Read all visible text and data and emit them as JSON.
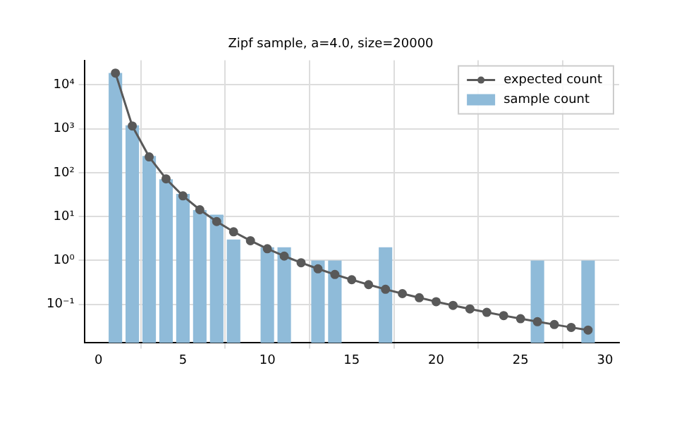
{
  "chart_data": {
    "type": "bar",
    "title": "Zipf sample, a=4.0, size=20000",
    "x": [
      1,
      2,
      3,
      4,
      5,
      6,
      7,
      8,
      9,
      10,
      11,
      12,
      13,
      14,
      15,
      16,
      17,
      18,
      19,
      20,
      21,
      22,
      23,
      24,
      25,
      26,
      27,
      28,
      29
    ],
    "series": [
      {
        "name": "expected count",
        "type": "line",
        "color": "#595959",
        "marker": "circle",
        "values": [
          18479,
          1155,
          228,
          72.2,
          29.6,
          14.3,
          7.7,
          4.5,
          2.82,
          1.85,
          1.26,
          0.89,
          0.647,
          0.481,
          0.365,
          0.282,
          0.221,
          0.176,
          0.142,
          0.1155,
          0.095,
          0.0789,
          0.066,
          0.0557,
          0.0473,
          0.0404,
          0.0348,
          0.03,
          0.0261
        ]
      },
      {
        "name": "sample count",
        "color": "#8fbbd9",
        "values": [
          18600,
          1190,
          240,
          71,
          33,
          14,
          11,
          3,
          null,
          2,
          2,
          null,
          1,
          1,
          null,
          null,
          2,
          null,
          null,
          null,
          null,
          null,
          null,
          null,
          null,
          1,
          null,
          null,
          1
        ]
      }
    ],
    "log": "y",
    "xlim": [
      -0.84,
      30.84
    ],
    "xticks": [
      0,
      5,
      10,
      15,
      20,
      25,
      30
    ],
    "ylim": [
      0.0133,
      36000
    ],
    "yticks": [
      {
        "value": 0.1,
        "label": "10⁻¹"
      },
      {
        "value": 1,
        "label": "10⁰"
      },
      {
        "value": 10,
        "label": "10¹"
      },
      {
        "value": 100,
        "label": "10²"
      },
      {
        "value": 1000,
        "label": "10³"
      },
      {
        "value": 10000,
        "label": "10⁴"
      }
    ],
    "grid": true,
    "legend": "top right"
  }
}
